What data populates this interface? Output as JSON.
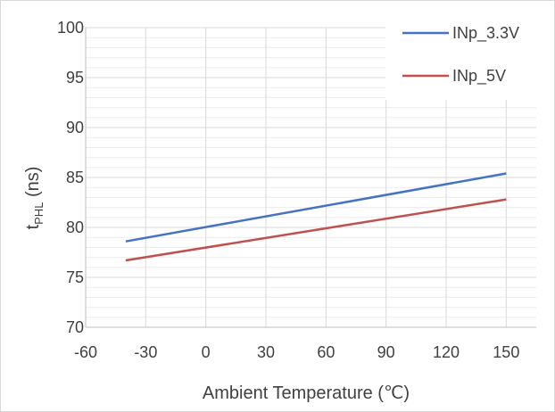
{
  "chart_data": {
    "type": "line",
    "x": [
      -40,
      150
    ],
    "series": [
      {
        "name": "INp_3.3V",
        "values": [
          78.6,
          85.4
        ],
        "color": "#4472C4"
      },
      {
        "name": "INp_5V",
        "values": [
          76.7,
          82.8
        ],
        "color": "#C0504D"
      }
    ],
    "xlabel": "Ambient Temperature (℃)",
    "ylabel_main": "t",
    "ylabel_sub": "PHL",
    "ylabel_unit": " (ns)",
    "xlim": [
      -60,
      165
    ],
    "ylim": [
      70,
      100
    ],
    "x_ticks": [
      -60,
      -30,
      0,
      30,
      60,
      90,
      120,
      150
    ],
    "y_ticks": [
      70,
      75,
      80,
      85,
      90,
      95,
      100
    ],
    "grid": true,
    "minor_grid": true,
    "legend_position": "top-right"
  }
}
